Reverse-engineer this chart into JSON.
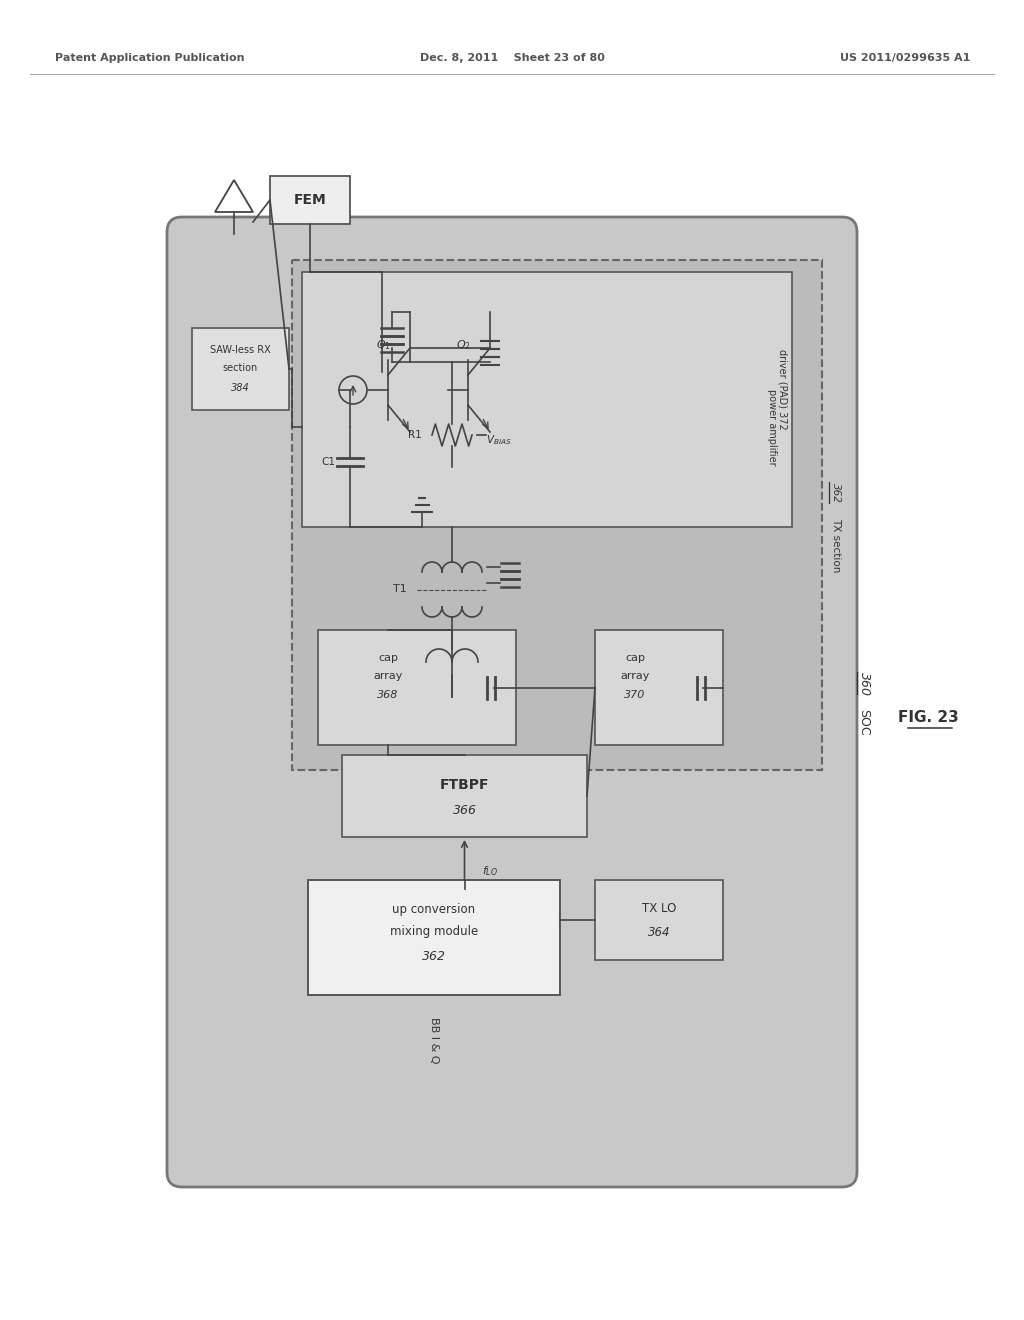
{
  "header_left": "Patent Application Publication",
  "header_center": "Dec. 8, 2011    Sheet 23 of 80",
  "header_right": "US 2011/0299635 A1",
  "bg_color": "#ffffff",
  "soc_bg": "#c8c8c8",
  "dashed_bg": "#bbbbbb",
  "pa_bg": "#d0d0d0",
  "box_bg": "#d8d8d8",
  "white_box_bg": "#f0f0f0",
  "edge_color": "#555555",
  "text_color": "#333333",
  "line_color": "#444444"
}
